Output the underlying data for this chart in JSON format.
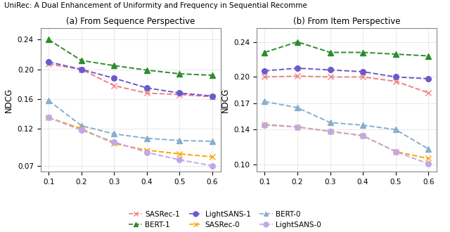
{
  "x": [
    0.1,
    0.2,
    0.3,
    0.4,
    0.5,
    0.6
  ],
  "title_a": "(a) From Sequence Perspective",
  "title_b": "(b) From Item Perspective",
  "suptitle": "UniRec: A Dual Enhancement of Uniformity and Frequency in Sequential Recomme",
  "ylabel": "NDCG",
  "subplot_a": {
    "SASRec_1": [
      0.207,
      0.2,
      0.178,
      0.168,
      0.166,
      0.163
    ],
    "SASRec_0": [
      0.135,
      0.12,
      0.1,
      0.091,
      0.086,
      0.082
    ],
    "BERT_1": [
      0.24,
      0.212,
      0.205,
      0.199,
      0.194,
      0.192
    ],
    "BERT_0": [
      0.158,
      0.124,
      0.113,
      0.107,
      0.104,
      0.103
    ],
    "LightSANS_1": [
      0.21,
      0.2,
      0.188,
      0.175,
      0.168,
      0.164
    ],
    "LightSANS_0": [
      0.135,
      0.118,
      0.102,
      0.088,
      0.078,
      0.07
    ]
  },
  "subplot_b": {
    "SASRec_1": [
      0.2,
      0.201,
      0.2,
      0.2,
      0.195,
      0.182
    ],
    "SASRec_0": [
      0.146,
      0.143,
      0.138,
      0.133,
      0.115,
      0.107
    ],
    "BERT_1": [
      0.228,
      0.24,
      0.228,
      0.228,
      0.226,
      0.224
    ],
    "BERT_0": [
      0.172,
      0.165,
      0.148,
      0.145,
      0.14,
      0.118
    ],
    "LightSANS_1": [
      0.207,
      0.21,
      0.208,
      0.206,
      0.2,
      0.198
    ],
    "LightSANS_0": [
      0.145,
      0.143,
      0.138,
      0.133,
      0.115,
      0.101
    ]
  },
  "ylim_a": [
    0.062,
    0.256
  ],
  "ylim_b": [
    0.092,
    0.256
  ],
  "yticks_a": [
    0.07,
    0.12,
    0.16,
    0.2,
    0.24
  ],
  "yticks_b": [
    0.1,
    0.14,
    0.17,
    0.2,
    0.24
  ],
  "c_sasrec1": "#F08080",
  "c_bert1": "#2E8B2E",
  "c_ls1": "#6A5ACD",
  "c_sasrec0": "#FFA500",
  "c_bert0": "#87AECE",
  "c_ls0": "#C0A8E8"
}
